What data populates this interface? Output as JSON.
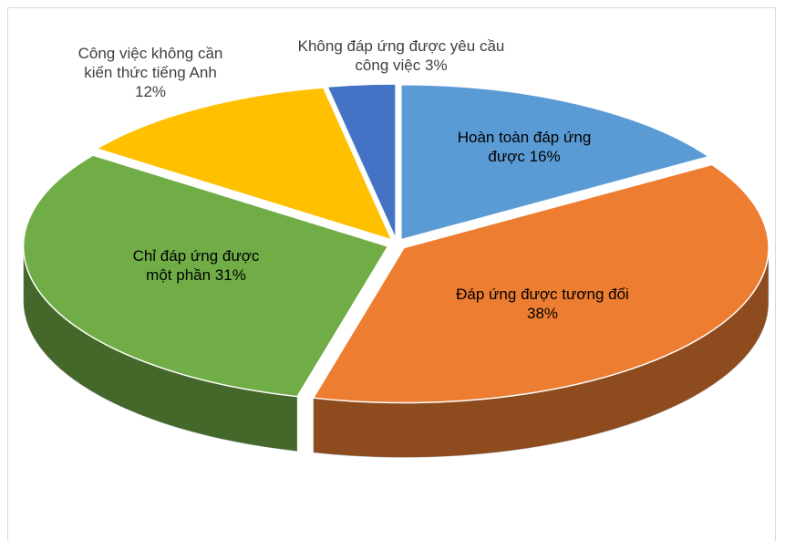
{
  "chart_data": {
    "type": "pie",
    "categories": [
      "Hoàn toàn đáp ứng được",
      "Đáp ứng được tương đối",
      "Chỉ đáp ứng được một phần",
      "Công việc không cần kiến thức tiếng Anh",
      "Không đáp ứng được yêu cầu công việc"
    ],
    "values": [
      16,
      38,
      31,
      12,
      3
    ],
    "value_labels": [
      "16%",
      "38%",
      "31%",
      "12%",
      "3%"
    ],
    "colors": [
      "#5b9bd5",
      "#ed7d31",
      "#70ad47",
      "#ffc000",
      "#4472c4"
    ]
  }
}
